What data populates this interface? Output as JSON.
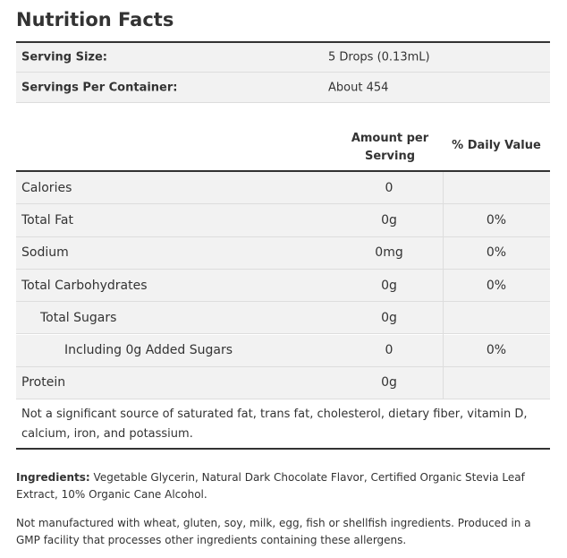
{
  "header": {
    "title": "Nutrition Facts"
  },
  "serving": [
    {
      "label": "Serving Size:",
      "value": "5 Drops (0.13mL)"
    },
    {
      "label": "Servings Per Container:",
      "value": "About 454"
    }
  ],
  "table": {
    "columns": [
      "Amount per Serving",
      "% Daily Value"
    ],
    "rows": [
      {
        "name": "Calories",
        "amount": "0"
      },
      {
        "name": "Total Fat",
        "amount": "0g",
        "dv": "0%"
      },
      {
        "name": "Sodium",
        "amount": "0mg",
        "dv": "0%"
      },
      {
        "name": "Total Carbohydrates",
        "amount": "0g",
        "dv": "0%"
      },
      {
        "name": "Total Sugars",
        "amount": "0g"
      },
      {
        "name": "Including 0g Added Sugars",
        "amount": "0",
        "dv": "0%"
      },
      {
        "name": "Protein",
        "amount": "0g"
      }
    ],
    "footnote": "Not a significant source of saturated fat, trans fat, cholesterol, dietary fiber, vitamin D, calcium, iron, and potassium."
  },
  "ingredients": {
    "label": "Ingredients:",
    "text": "Vegetable Glycerin, Natural Dark Chocolate Flavor, Certified Organic Stevia Leaf Extract, 10% Organic Cane Alcohol."
  },
  "allergens": "Not manufactured with wheat, gluten, soy, milk, egg, fish or shellfish ingredients. Produced in a GMP facility that processes other ingredients containing these allergens."
}
